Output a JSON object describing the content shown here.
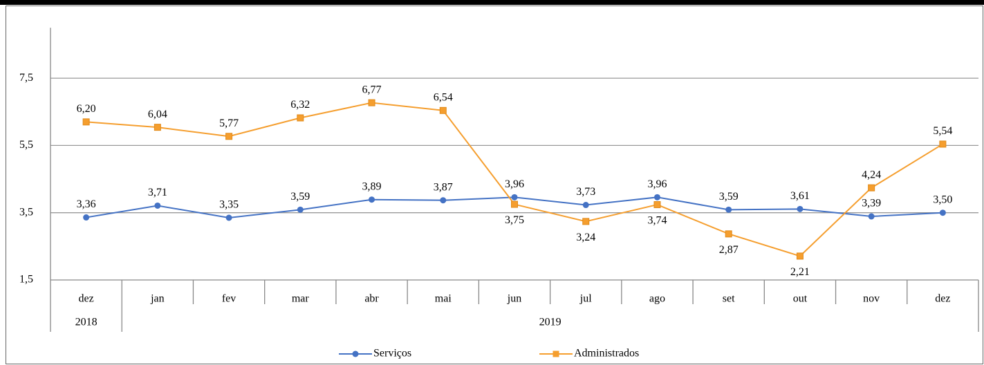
{
  "chart_data": {
    "type": "line",
    "categories": [
      "dez",
      "jan",
      "fev",
      "mar",
      "abr",
      "mai",
      "jun",
      "jul",
      "ago",
      "set",
      "out",
      "nov",
      "dez"
    ],
    "groups": [
      {
        "label": "2018",
        "count": 1
      },
      {
        "label": "2019",
        "count": 12
      }
    ],
    "series": [
      {
        "name": "Serviços",
        "color": "#4472c4",
        "marker": "circle",
        "values": [
          3.36,
          3.71,
          3.35,
          3.59,
          3.89,
          3.87,
          3.96,
          3.73,
          3.96,
          3.59,
          3.61,
          3.39,
          3.5
        ],
        "value_labels": [
          "3,36",
          "3,71",
          "3,35",
          "3,59",
          "3,89",
          "3,87",
          "3,96",
          "3,73",
          "3,96",
          "3,59",
          "3,61",
          "3,39",
          "3,50"
        ]
      },
      {
        "name": "Administrados",
        "color": "#f59e2e",
        "marker": "square",
        "values": [
          6.2,
          6.04,
          5.77,
          6.32,
          6.77,
          6.54,
          3.75,
          3.24,
          3.74,
          2.87,
          2.21,
          4.24,
          5.54
        ],
        "value_labels": [
          "6,20",
          "6,04",
          "5,77",
          "6,32",
          "6,77",
          "6,54",
          "3,75",
          "3,24",
          "3,74",
          "2,87",
          "2,21",
          "4,24",
          "5,54"
        ]
      }
    ],
    "ylim": [
      1.5,
      9
    ],
    "yticks": [
      {
        "value": 1.5,
        "label": "1,5"
      },
      {
        "value": 3.5,
        "label": "3,5"
      },
      {
        "value": 5.5,
        "label": "5,5"
      },
      {
        "value": 7.5,
        "label": "7,5"
      }
    ],
    "grid": true,
    "legend": "bottom"
  }
}
